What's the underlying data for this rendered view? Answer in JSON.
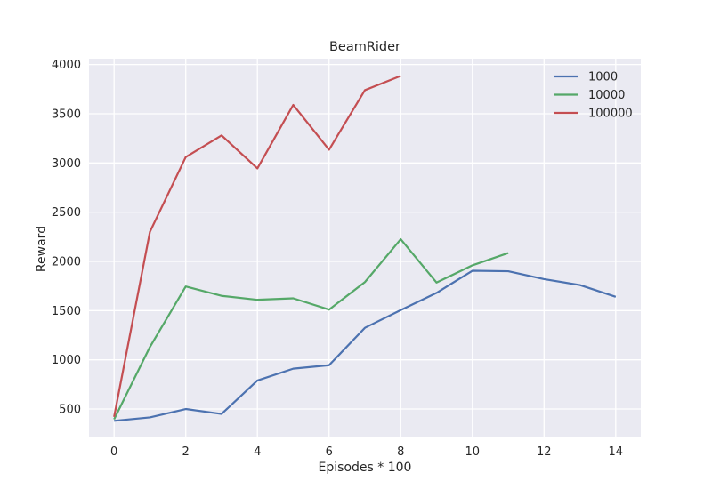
{
  "chart_data": {
    "type": "line",
    "title": "BeamRider",
    "xlabel": "Episodes * 100",
    "ylabel": "Reward",
    "xlim": [
      -0.7,
      14.7
    ],
    "ylim": [
      220,
      4060
    ],
    "xticks": [
      0,
      2,
      4,
      6,
      8,
      10,
      12,
      14
    ],
    "yticks": [
      500,
      1000,
      1500,
      2000,
      2500,
      3000,
      3500,
      4000
    ],
    "grid": true,
    "legend_position": "top-right",
    "series": [
      {
        "name": "1000",
        "color": "#4c72b0",
        "x": [
          0,
          1,
          2,
          3,
          4,
          5,
          6,
          7,
          8,
          9,
          10,
          11,
          12,
          13,
          14
        ],
        "y": [
          380,
          415,
          500,
          450,
          790,
          910,
          945,
          1325,
          1505,
          1680,
          1905,
          1900,
          1820,
          1760,
          1640
        ]
      },
      {
        "name": "10000",
        "color": "#55a868",
        "x": [
          0,
          1,
          2,
          3,
          4,
          5,
          6,
          7,
          8,
          9,
          10,
          11
        ],
        "y": [
          395,
          1130,
          1745,
          1650,
          1610,
          1625,
          1510,
          1790,
          2225,
          1785,
          1960,
          2085
        ]
      },
      {
        "name": "100000",
        "color": "#c44e52",
        "x": [
          0,
          1,
          2,
          3,
          4,
          5,
          6,
          7,
          8
        ],
        "y": [
          420,
          2300,
          3060,
          3280,
          2945,
          3590,
          3135,
          3740,
          3885
        ]
      }
    ]
  }
}
